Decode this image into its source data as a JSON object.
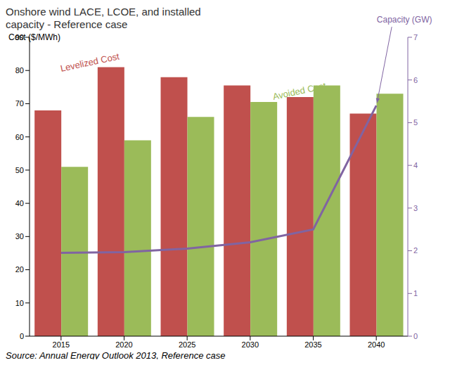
{
  "chart_data": {
    "type": "bar",
    "title": "Onshore wind LACE, LCOE, and installed capacity - Reference case",
    "y_label": "Cost ($/MWh)",
    "y2_label": "Capacity (GW)",
    "source": "Source: Annual Energy Outlook 2013, Reference case",
    "categories": [
      "2015",
      "2020",
      "2025",
      "2030",
      "2035",
      "2040"
    ],
    "series": [
      {
        "name": "Levelized Cost",
        "type": "bar",
        "color": "#c0504d",
        "values": [
          68,
          81,
          78,
          75.5,
          72,
          67
        ]
      },
      {
        "name": "Avoided Cost",
        "type": "bar",
        "color": "#9bbb59",
        "values": [
          51,
          59,
          66,
          70.5,
          75.5,
          73
        ]
      },
      {
        "name": "Capacity (GW)",
        "type": "line",
        "axis": "y2",
        "color": "#8064a2",
        "values": [
          1.95,
          1.97,
          2.05,
          2.2,
          2.5,
          5.4
        ]
      }
    ],
    "ylim": [
      0,
      90
    ],
    "yticks": [
      0,
      10,
      20,
      30,
      40,
      50,
      60,
      70,
      80,
      90
    ],
    "y2lim": [
      0,
      7
    ],
    "y2ticks": [
      0,
      1,
      2,
      3,
      4,
      5,
      6,
      7
    ],
    "grid": false
  }
}
